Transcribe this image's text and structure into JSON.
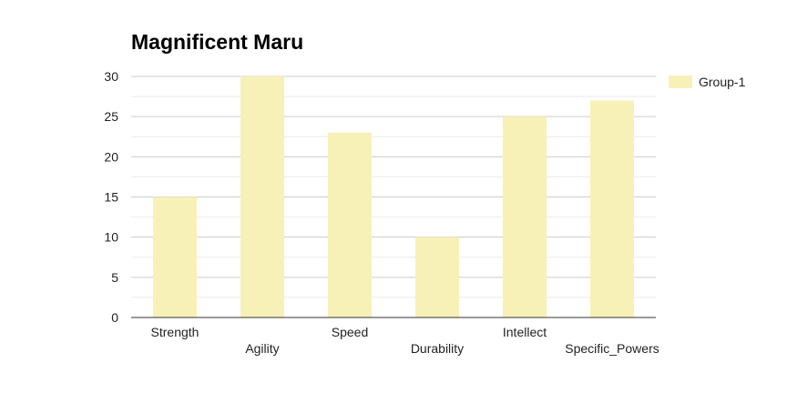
{
  "chart_data": {
    "type": "bar",
    "title": "Magnificent Maru",
    "xlabel": "",
    "ylabel": "",
    "categories": [
      "Strength",
      "Agility",
      "Speed",
      "Durability",
      "Intellect",
      "Specific_Powers"
    ],
    "series": [
      {
        "name": "Group-1",
        "values": [
          15,
          30,
          23,
          10,
          25,
          27
        ]
      }
    ],
    "ylim": [
      0,
      30
    ],
    "yticks": [
      "0",
      "5",
      "10",
      "15",
      "20",
      "25",
      "30"
    ],
    "grid": true,
    "legend_position": "top-right",
    "colors": {
      "bar": "#f7f1b8",
      "grid_major": "#cccccc",
      "grid_minor": "#ebebeb",
      "axis": "#333333"
    }
  }
}
